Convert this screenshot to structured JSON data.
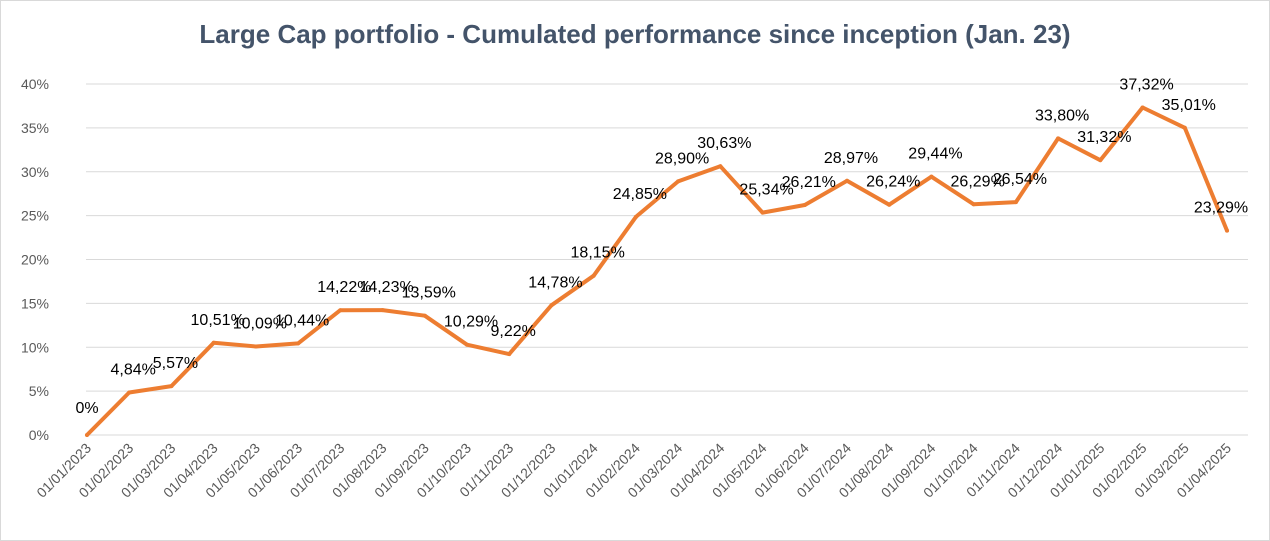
{
  "chart_data": {
    "type": "line",
    "title": "Large Cap portfolio - Cumulated performance since inception (Jan. 23)",
    "xlabel": "",
    "ylabel": "",
    "ylim": [
      0,
      40
    ],
    "y_ticks": [
      "0%",
      "5%",
      "10%",
      "15%",
      "20%",
      "25%",
      "30%",
      "35%",
      "40%"
    ],
    "grid": "horizontal",
    "legend": "none",
    "categories": [
      "01/01/2023",
      "01/02/2023",
      "01/03/2023",
      "01/04/2023",
      "01/05/2023",
      "01/06/2023",
      "01/07/2023",
      "01/08/2023",
      "01/09/2023",
      "01/10/2023",
      "01/11/2023",
      "01/12/2023",
      "01/01/2024",
      "01/02/2024",
      "01/03/2024",
      "01/04/2024",
      "01/05/2024",
      "01/06/2024",
      "01/07/2024",
      "01/08/2024",
      "01/09/2024",
      "01/10/2024",
      "01/11/2024",
      "01/12/2024",
      "01/01/2025",
      "01/02/2025",
      "01/03/2025",
      "01/04/2025"
    ],
    "series": [
      {
        "color": "#ed7d31",
        "values": [
          0,
          4.84,
          5.57,
          10.51,
          10.09,
          10.44,
          14.22,
          14.23,
          13.59,
          10.29,
          9.22,
          14.78,
          18.15,
          24.85,
          28.9,
          30.63,
          25.34,
          26.21,
          28.97,
          26.24,
          29.44,
          26.29,
          26.54,
          33.8,
          31.32,
          37.32,
          35.01,
          23.29
        ],
        "labels": [
          "0%",
          "4,84%",
          "5,57%",
          "10,51%",
          "10,09%",
          "10,44%",
          "14,22%",
          "14,23%",
          "13,59%",
          "10,29%",
          "9,22%",
          "14,78%",
          "18,15%",
          "24,85%",
          "28,90%",
          "30,63%",
          "25,34%",
          "26,21%",
          "28,97%",
          "26,24%",
          "29,44%",
          "26,29%",
          "26,54%",
          "33,80%",
          "31,32%",
          "37,32%",
          "35,01%",
          "23,29%"
        ]
      }
    ]
  }
}
